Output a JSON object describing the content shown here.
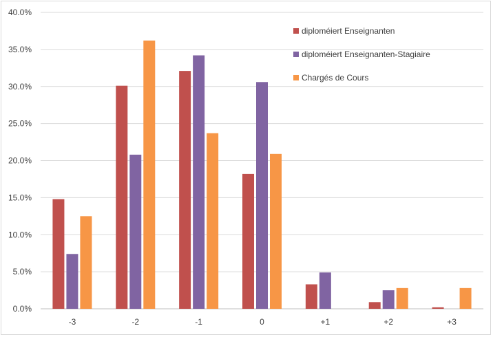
{
  "chart_data": {
    "type": "bar",
    "categories": [
      "-3",
      "-2",
      "-1",
      "0",
      "+1",
      "+2",
      "+3"
    ],
    "series": [
      {
        "name": "diploméiert Enseignanten",
        "color": "#c0504d",
        "values": [
          14.8,
          30.1,
          32.1,
          18.2,
          3.3,
          0.9,
          0.2
        ]
      },
      {
        "name": "diploméiert Enseignanten-Stagiaire",
        "color": "#8064a2",
        "values": [
          7.4,
          20.8,
          34.2,
          30.6,
          4.9,
          2.5,
          0.0
        ]
      },
      {
        "name": "Chargés de Cours",
        "color": "#f79646",
        "values": [
          12.5,
          36.2,
          23.7,
          20.9,
          0.0,
          2.8,
          2.8
        ]
      }
    ],
    "yticks": [
      "0.0%",
      "5.0%",
      "10.0%",
      "15.0%",
      "20.0%",
      "25.0%",
      "30.0%",
      "35.0%",
      "40.0%"
    ],
    "ylim": [
      0,
      40
    ],
    "title": "",
    "xlabel": "",
    "ylabel": "",
    "grid": true,
    "legend": "top-right"
  }
}
